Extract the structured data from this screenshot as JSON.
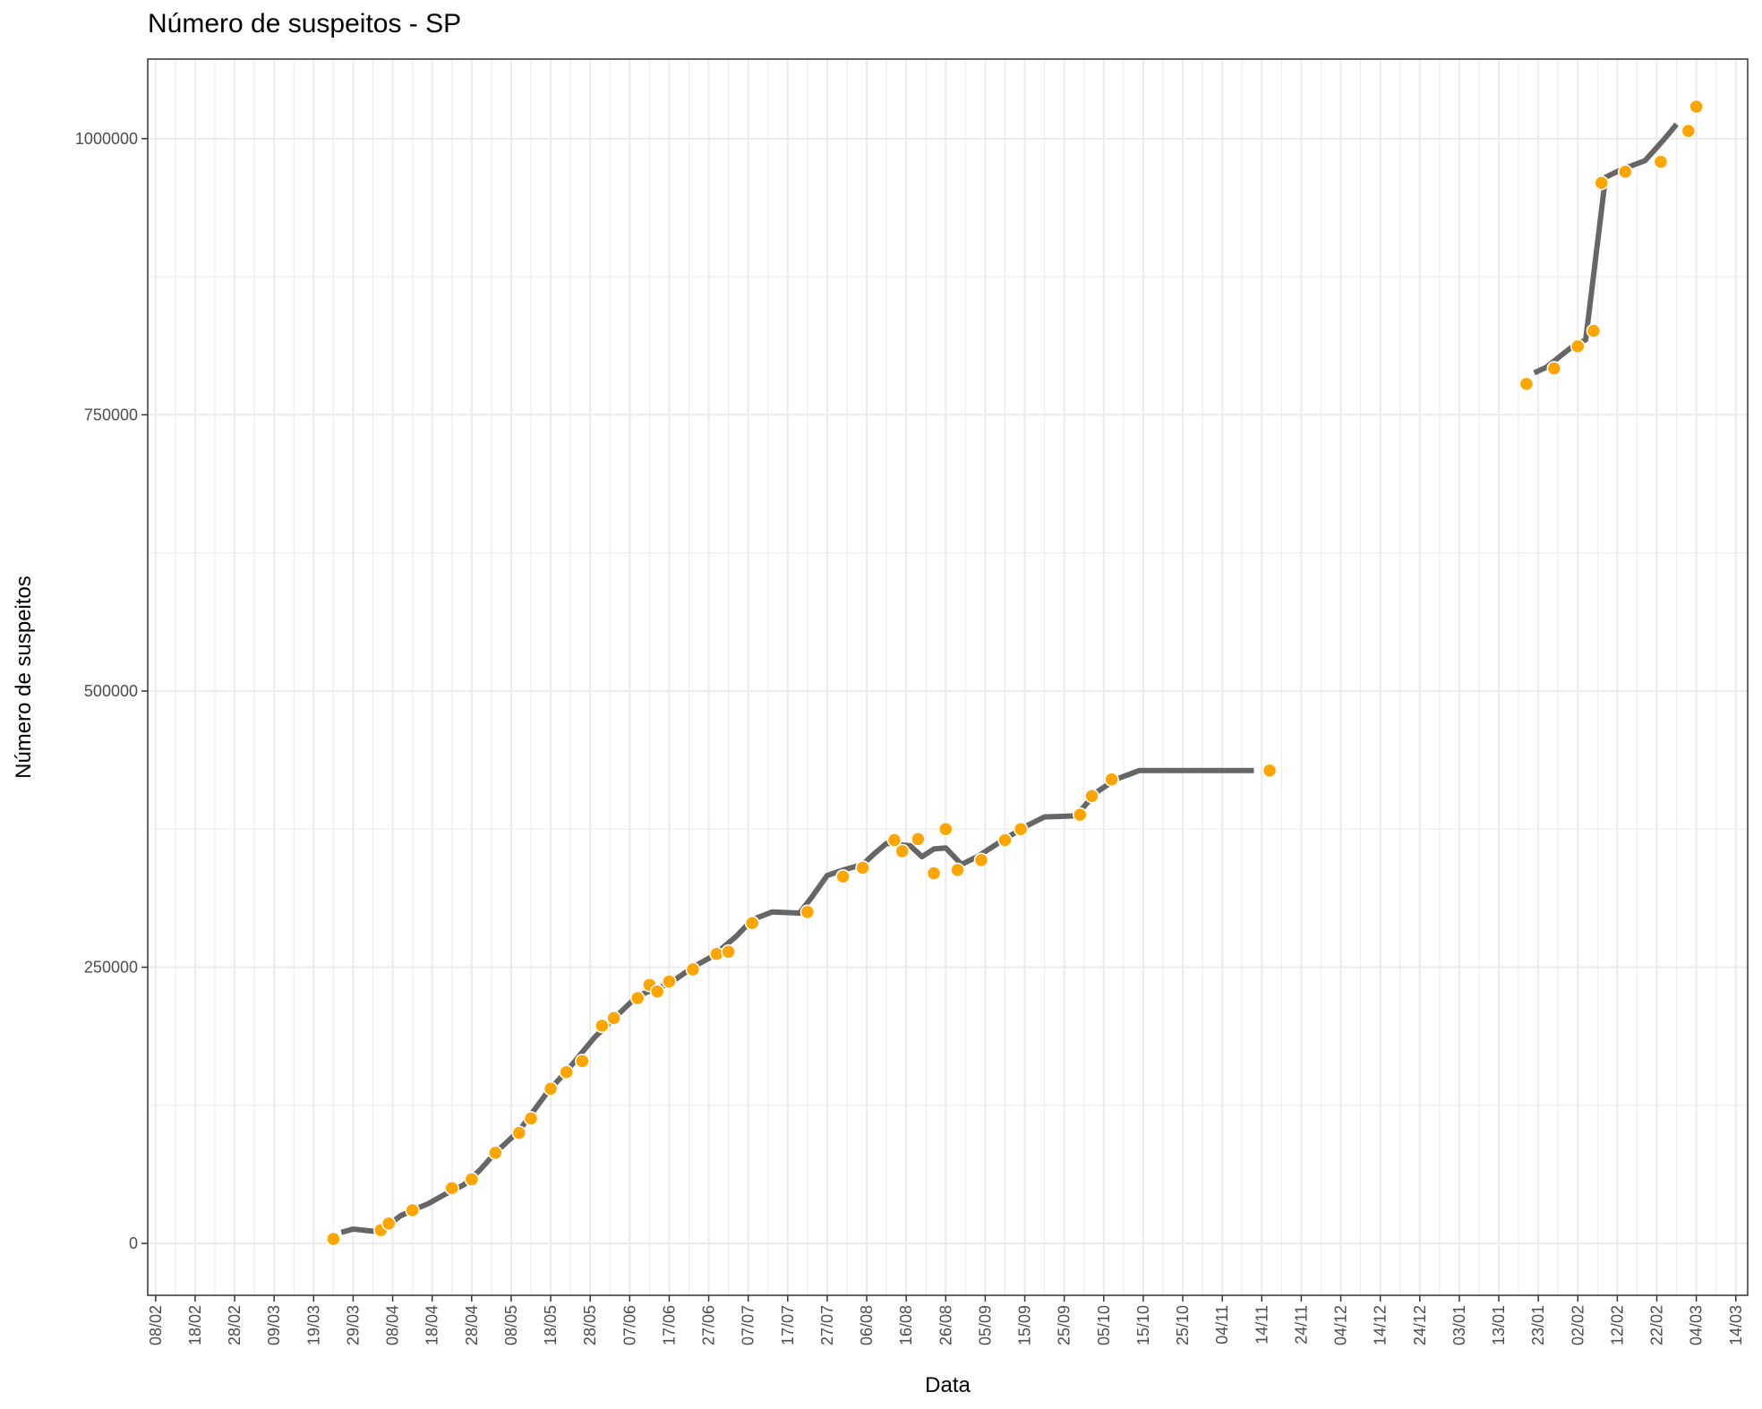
{
  "chart_data": {
    "type": "scatter",
    "title": "Número de suspeitos - SP",
    "xlabel": "Data",
    "ylabel": "Número de suspeitos",
    "x_axis": {
      "kind": "date",
      "range": [
        "2020-02-06",
        "2021-03-17"
      ],
      "tick_labels": [
        "08/02",
        "18/02",
        "28/02",
        "09/03",
        "19/03",
        "29/03",
        "08/04",
        "18/04",
        "28/04",
        "08/05",
        "18/05",
        "28/05",
        "07/06",
        "17/06",
        "27/06",
        "07/07",
        "17/07",
        "27/07",
        "06/08",
        "16/08",
        "26/08",
        "05/09",
        "15/09",
        "25/09",
        "05/10",
        "15/10",
        "25/10",
        "04/11",
        "14/11",
        "24/11",
        "04/12",
        "14/12",
        "24/12",
        "03/01",
        "13/01",
        "23/01",
        "02/02",
        "12/02",
        "22/02",
        "04/03",
        "14/03"
      ],
      "tick_dates": [
        "2020-02-08",
        "2020-02-18",
        "2020-02-28",
        "2020-03-09",
        "2020-03-19",
        "2020-03-29",
        "2020-04-08",
        "2020-04-18",
        "2020-04-28",
        "2020-05-08",
        "2020-05-18",
        "2020-05-28",
        "2020-06-07",
        "2020-06-17",
        "2020-06-27",
        "2020-07-07",
        "2020-07-17",
        "2020-07-27",
        "2020-08-06",
        "2020-08-16",
        "2020-08-26",
        "2020-09-05",
        "2020-09-15",
        "2020-09-25",
        "2020-10-05",
        "2020-10-15",
        "2020-10-25",
        "2020-11-04",
        "2020-11-14",
        "2020-11-24",
        "2020-12-04",
        "2020-12-14",
        "2020-12-24",
        "2021-01-03",
        "2021-01-13",
        "2021-01-23",
        "2021-02-02",
        "2021-02-12",
        "2021-02-22",
        "2021-03-04",
        "2021-03-14"
      ]
    },
    "y_axis": {
      "range": [
        -47000,
        1072000
      ],
      "ticks": [
        0,
        250000,
        500000,
        750000,
        1000000
      ],
      "tick_labels": [
        "0",
        "250000",
        "500000",
        "750000",
        "1000000"
      ]
    },
    "grid": true,
    "legend": "none",
    "colors": {
      "points": "#FFA500",
      "line": "#666666",
      "grid": "#ebebeb",
      "border": "#333333"
    },
    "points": [
      {
        "x": "2020-03-24",
        "y": 4000
      },
      {
        "x": "2020-04-05",
        "y": 12000
      },
      {
        "x": "2020-04-07",
        "y": 18000
      },
      {
        "x": "2020-04-13",
        "y": 30000
      },
      {
        "x": "2020-04-23",
        "y": 50000
      },
      {
        "x": "2020-04-28",
        "y": 58000
      },
      {
        "x": "2020-05-04",
        "y": 82000
      },
      {
        "x": "2020-05-10",
        "y": 100000
      },
      {
        "x": "2020-05-13",
        "y": 113000
      },
      {
        "x": "2020-05-18",
        "y": 140000
      },
      {
        "x": "2020-05-22",
        "y": 155000
      },
      {
        "x": "2020-05-26",
        "y": 165000
      },
      {
        "x": "2020-05-31",
        "y": 197000
      },
      {
        "x": "2020-06-03",
        "y": 204000
      },
      {
        "x": "2020-06-09",
        "y": 222000
      },
      {
        "x": "2020-06-12",
        "y": 234000
      },
      {
        "x": "2020-06-14",
        "y": 228000
      },
      {
        "x": "2020-06-17",
        "y": 237000
      },
      {
        "x": "2020-06-23",
        "y": 248000
      },
      {
        "x": "2020-06-29",
        "y": 262000
      },
      {
        "x": "2020-07-02",
        "y": 264000
      },
      {
        "x": "2020-07-08",
        "y": 290000
      },
      {
        "x": "2020-07-22",
        "y": 300000
      },
      {
        "x": "2020-07-31",
        "y": 332000
      },
      {
        "x": "2020-08-05",
        "y": 340000
      },
      {
        "x": "2020-08-13",
        "y": 365000
      },
      {
        "x": "2020-08-15",
        "y": 355000
      },
      {
        "x": "2020-08-19",
        "y": 366000
      },
      {
        "x": "2020-08-23",
        "y": 335000
      },
      {
        "x": "2020-08-26",
        "y": 375000
      },
      {
        "x": "2020-08-29",
        "y": 338000
      },
      {
        "x": "2020-09-04",
        "y": 347000
      },
      {
        "x": "2020-09-10",
        "y": 365000
      },
      {
        "x": "2020-09-14",
        "y": 375000
      },
      {
        "x": "2020-09-29",
        "y": 388000
      },
      {
        "x": "2020-10-02",
        "y": 405000
      },
      {
        "x": "2020-10-07",
        "y": 420000
      },
      {
        "x": "2020-11-16",
        "y": 428000
      },
      {
        "x": "2021-01-20",
        "y": 778000
      },
      {
        "x": "2021-01-27",
        "y": 792000
      },
      {
        "x": "2021-02-02",
        "y": 812000
      },
      {
        "x": "2021-02-06",
        "y": 826000
      },
      {
        "x": "2021-02-08",
        "y": 960000
      },
      {
        "x": "2021-02-14",
        "y": 970000
      },
      {
        "x": "2021-02-23",
        "y": 979000
      },
      {
        "x": "2021-03-02",
        "y": 1007000
      },
      {
        "x": "2021-03-04",
        "y": 1029000
      }
    ],
    "trend_segments": [
      [
        {
          "x": "2020-03-26",
          "y": 10000
        },
        {
          "x": "2020-03-29",
          "y": 13000
        },
        {
          "x": "2020-04-03",
          "y": 11000
        },
        {
          "x": "2020-04-06",
          "y": 14000
        },
        {
          "x": "2020-04-10",
          "y": 25000
        },
        {
          "x": "2020-04-13",
          "y": 30000
        },
        {
          "x": "2020-04-17",
          "y": 36000
        },
        {
          "x": "2020-04-21",
          "y": 44000
        },
        {
          "x": "2020-04-26",
          "y": 53000
        },
        {
          "x": "2020-04-30",
          "y": 66000
        },
        {
          "x": "2020-05-04",
          "y": 82000
        },
        {
          "x": "2020-05-10",
          "y": 102000
        },
        {
          "x": "2020-05-17",
          "y": 136000
        },
        {
          "x": "2020-05-23",
          "y": 160000
        },
        {
          "x": "2020-05-29",
          "y": 186000
        },
        {
          "x": "2020-06-04",
          "y": 207000
        },
        {
          "x": "2020-06-09",
          "y": 224000
        },
        {
          "x": "2020-06-17",
          "y": 235000
        },
        {
          "x": "2020-06-23",
          "y": 250000
        },
        {
          "x": "2020-06-28",
          "y": 260000
        },
        {
          "x": "2020-07-04",
          "y": 278000
        },
        {
          "x": "2020-07-08",
          "y": 293000
        },
        {
          "x": "2020-07-13",
          "y": 300000
        },
        {
          "x": "2020-07-20",
          "y": 299000
        },
        {
          "x": "2020-07-23",
          "y": 313000
        },
        {
          "x": "2020-07-27",
          "y": 333000
        },
        {
          "x": "2020-07-31",
          "y": 338000
        },
        {
          "x": "2020-08-05",
          "y": 343000
        },
        {
          "x": "2020-08-08",
          "y": 353000
        },
        {
          "x": "2020-08-11",
          "y": 362000
        },
        {
          "x": "2020-08-17",
          "y": 360000
        },
        {
          "x": "2020-08-20",
          "y": 350000
        },
        {
          "x": "2020-08-23",
          "y": 357000
        },
        {
          "x": "2020-08-26",
          "y": 358000
        },
        {
          "x": "2020-08-30",
          "y": 343000
        },
        {
          "x": "2020-09-03",
          "y": 350000
        },
        {
          "x": "2020-09-09",
          "y": 364000
        },
        {
          "x": "2020-09-15",
          "y": 377000
        },
        {
          "x": "2020-09-20",
          "y": 386000
        },
        {
          "x": "2020-09-28",
          "y": 387000
        },
        {
          "x": "2020-10-03",
          "y": 408000
        },
        {
          "x": "2020-10-08",
          "y": 420000
        },
        {
          "x": "2020-10-14",
          "y": 428000
        },
        {
          "x": "2020-11-12",
          "y": 428000
        }
      ],
      [
        {
          "x": "2021-01-22",
          "y": 788000
        },
        {
          "x": "2021-01-25",
          "y": 793000
        },
        {
          "x": "2021-01-31",
          "y": 810000
        },
        {
          "x": "2021-02-04",
          "y": 818000
        },
        {
          "x": "2021-02-09",
          "y": 965000
        },
        {
          "x": "2021-02-13",
          "y": 972000
        },
        {
          "x": "2021-02-19",
          "y": 980000
        },
        {
          "x": "2021-02-24",
          "y": 1000000
        },
        {
          "x": "2021-02-27",
          "y": 1013000
        }
      ]
    ]
  }
}
